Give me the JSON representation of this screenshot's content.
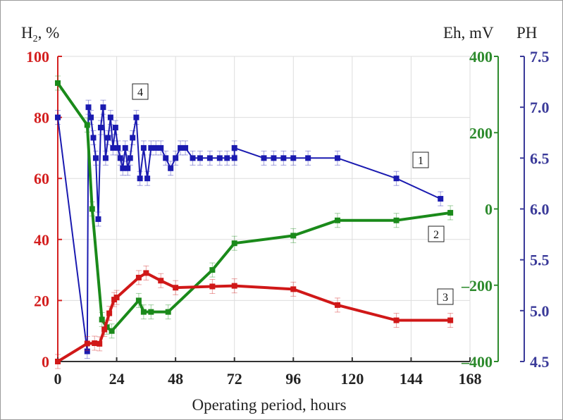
{
  "chart_data": {
    "type": "line",
    "xlabel": "Operating period, hours",
    "x_ticks": [
      0,
      24,
      48,
      72,
      96,
      120,
      144,
      168
    ],
    "xlim": [
      0,
      168
    ],
    "axes": {
      "left": {
        "label_main": "H",
        "label_sub": "2",
        "label_suffix": ", %",
        "ylim": [
          0,
          100
        ],
        "ticks": [
          0,
          20,
          40,
          60,
          80,
          100
        ],
        "color": "#d42020"
      },
      "right1": {
        "label": "Eh, mV",
        "ylim": [
          -400,
          400
        ],
        "ticks": [
          -400,
          -200,
          0,
          200,
          400
        ],
        "tick_labels": [
          "–400",
          "–200",
          "0",
          "200",
          "400"
        ],
        "color": "#2e8b2e"
      },
      "right2": {
        "label": "PH",
        "ylim": [
          4.5,
          7.5
        ],
        "ticks": [
          4.5,
          5.0,
          5.5,
          6.0,
          6.5,
          7.0,
          7.5
        ],
        "tick_labels": [
          "4.5",
          "5.0",
          "5.5",
          "6.0",
          "6.5",
          "7.0",
          "7.5"
        ],
        "color": "#3a3a99"
      }
    },
    "grid": true,
    "series": [
      {
        "name": "1",
        "axis": "right2",
        "color": "#1a1ab0",
        "x": [
          0,
          12,
          12.5,
          13.5,
          14.5,
          15.5,
          16.5,
          17.5,
          18.5,
          19.5,
          20.5,
          21.5,
          22.5,
          23.5,
          24.5,
          25.5,
          26.5,
          27.5,
          28.5,
          29.5,
          30.5,
          32,
          33.5,
          35,
          36.5,
          38,
          40,
          42,
          44,
          46,
          48,
          50,
          52,
          55,
          58,
          62,
          66,
          69,
          72,
          72,
          84,
          88,
          92,
          96,
          102,
          114,
          138,
          156
        ],
        "y": [
          6.9,
          4.6,
          7.0,
          6.9,
          6.7,
          6.5,
          5.9,
          6.8,
          7.0,
          6.5,
          6.7,
          6.9,
          6.6,
          6.8,
          6.6,
          6.5,
          6.4,
          6.6,
          6.4,
          6.5,
          6.7,
          6.9,
          6.3,
          6.6,
          6.3,
          6.6,
          6.6,
          6.6,
          6.5,
          6.4,
          6.5,
          6.6,
          6.6,
          6.5,
          6.5,
          6.5,
          6.5,
          6.5,
          6.5,
          6.6,
          6.5,
          6.5,
          6.5,
          6.5,
          6.5,
          6.5,
          6.3,
          6.1
        ]
      },
      {
        "name": "2",
        "axis": "right1",
        "color": "#1a8a1a",
        "x": [
          0,
          12,
          14,
          18,
          20,
          22,
          33,
          35,
          38,
          45,
          63,
          72,
          96,
          114,
          138,
          160
        ],
        "y": [
          330,
          220,
          0,
          -290,
          -310,
          -320,
          -240,
          -270,
          -270,
          -270,
          -160,
          -90,
          -70,
          -30,
          -30,
          -10
        ]
      },
      {
        "name": "3",
        "axis": "left",
        "color": "#d01818",
        "x": [
          0,
          12,
          15,
          17,
          19,
          21,
          23,
          24,
          33,
          36,
          42,
          48,
          63,
          72,
          96,
          114,
          138,
          160
        ],
        "y": [
          0,
          5.9,
          6.0,
          5.8,
          10.5,
          15.8,
          20.3,
          21.0,
          27.5,
          29.0,
          26.5,
          24.2,
          24.6,
          24.8,
          23.7,
          18.5,
          13.5,
          13.5
        ]
      }
    ],
    "annotations": [
      "1",
      "2",
      "3",
      "4"
    ]
  }
}
